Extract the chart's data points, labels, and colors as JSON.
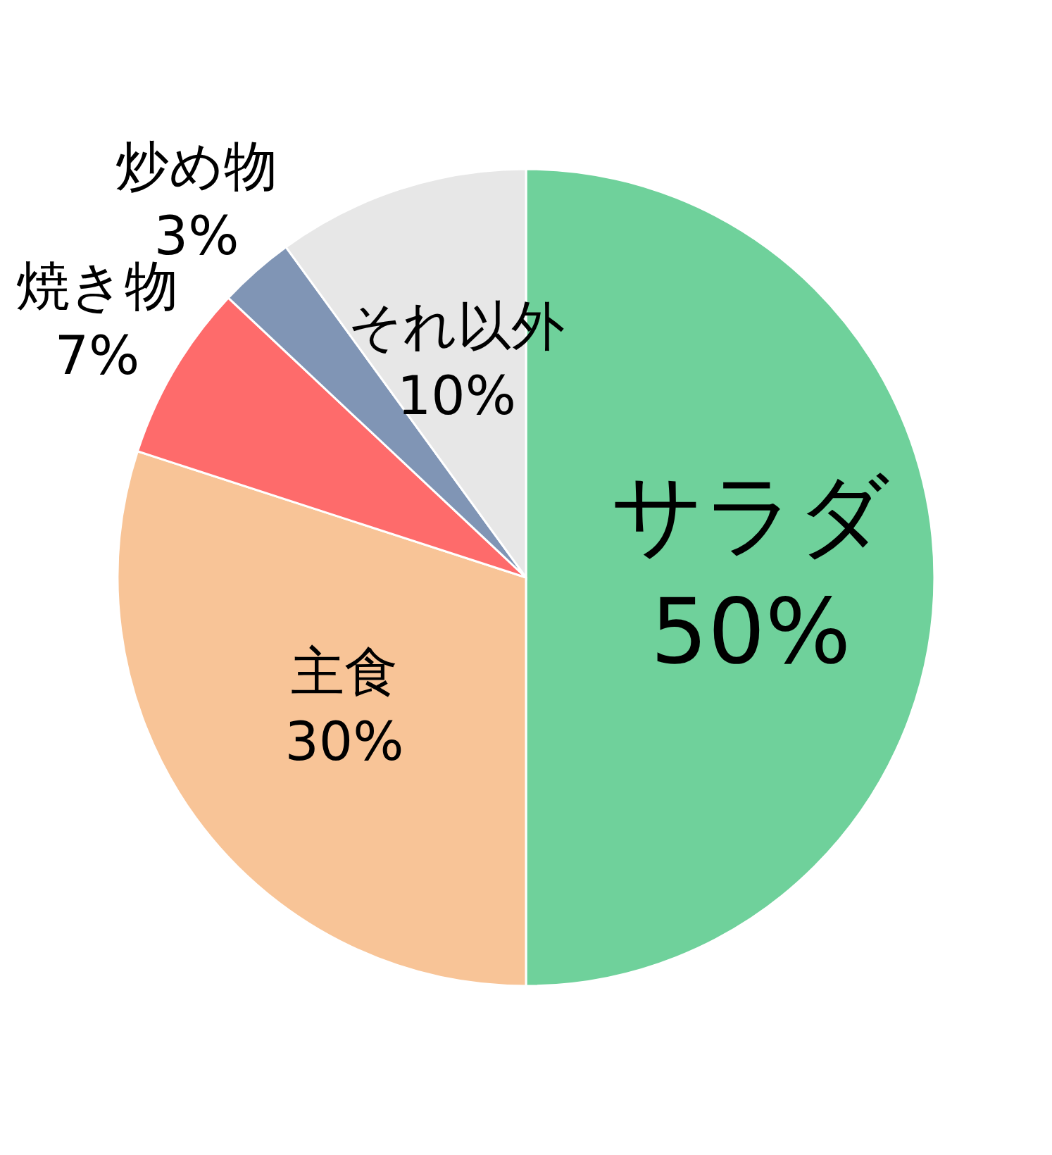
{
  "chart_data": {
    "type": "pie",
    "categories": [
      "サラダ",
      "主食",
      "焼き物",
      "炒め物",
      "それ以外"
    ],
    "values": [
      50,
      30,
      7,
      3,
      10
    ],
    "value_labels": [
      "50%",
      "30%",
      "7%",
      "3%",
      "10%"
    ],
    "colors": [
      "#6fd19b",
      "#f8c497",
      "#fe6b6b",
      "#8095b5",
      "#e7e7e7"
    ]
  }
}
